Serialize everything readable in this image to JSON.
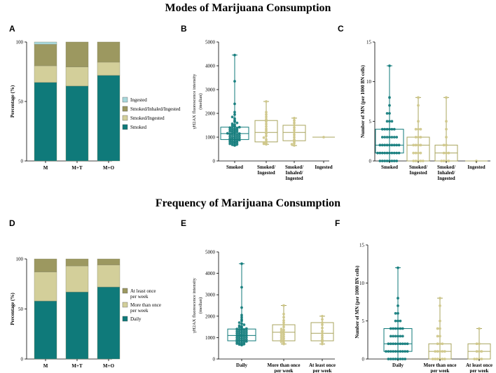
{
  "titles": {
    "top": "Modes of Marijuana Consumption",
    "bottom": "Frequency of Marijuana Consumption"
  },
  "colors": {
    "smoked": "#0f7a7a",
    "smoked_ingested": "#d3cf9a",
    "smoked_inhaled_ingested": "#9c9860",
    "ingested": "#a8d8dc",
    "daily": "#0f7a7a",
    "more_than_once": "#d3cf9a",
    "at_least_once": "#9c9860",
    "box_olive": "#a9a45e",
    "dot_olive": "#cfc88a"
  },
  "chart_data": [
    {
      "panel": "A",
      "type": "bar",
      "stacked": true,
      "ylabel": "Percentage (%)",
      "ylim": [
        0,
        100
      ],
      "yticks": [
        "0",
        "50",
        "100"
      ],
      "categories": [
        "M",
        "M+T",
        "M+O"
      ],
      "series": [
        {
          "name": "Smoked",
          "values": [
            66,
            63,
            72
          ],
          "color_key": "smoked"
        },
        {
          "name": "Smoked/Ingested",
          "values": [
            14,
            16,
            11
          ],
          "color_key": "smoked_ingested"
        },
        {
          "name": "Smoked/Inhaled/Ingested",
          "values": [
            18,
            21,
            17
          ],
          "color_key": "smoked_inhaled_ingested"
        },
        {
          "name": "Ingested",
          "values": [
            2,
            0,
            0
          ],
          "color_key": "ingested"
        }
      ],
      "legend": [
        "Ingested",
        "Smoked/Inhaled/Ingested",
        "Smoked/Ingested",
        "Smoked"
      ],
      "legend_position": "right"
    },
    {
      "panel": "B",
      "type": "scatter",
      "subtype": "box-with-points",
      "ylabel_line1": "γH2AX fluorescence intensity",
      "ylabel_line2": "(median)",
      "ylim": [
        0,
        5000
      ],
      "yticks": [
        "0",
        "1000",
        "2000",
        "3000",
        "4000",
        "5000"
      ],
      "categories": [
        [
          "Smoked"
        ],
        [
          "Smoked/",
          "Ingested"
        ],
        [
          "Smoked/",
          "Inhaled/",
          "Ingested"
        ],
        [
          "Ingested"
        ]
      ],
      "series": [
        {
          "name": "Smoked",
          "min": 650,
          "q1": 900,
          "median": 1150,
          "q3": 1420,
          "max": 4450,
          "points": [
            650,
            680,
            700,
            720,
            740,
            760,
            780,
            800,
            810,
            830,
            850,
            870,
            880,
            900,
            920,
            930,
            950,
            970,
            990,
            1000,
            1020,
            1040,
            1060,
            1080,
            1100,
            1110,
            1130,
            1150,
            1160,
            1180,
            1200,
            1220,
            1240,
            1260,
            1280,
            1300,
            1320,
            1340,
            1360,
            1380,
            1400,
            1420,
            1450,
            1480,
            1520,
            1560,
            1600,
            1650,
            1700,
            1780,
            1850,
            1950,
            2050,
            2400,
            3350,
            4450
          ]
        },
        {
          "name": "Smoked/Ingested",
          "min": 700,
          "q1": 800,
          "median": 1200,
          "q3": 1700,
          "max": 2500,
          "points": [
            700,
            720,
            750,
            780,
            820,
            900,
            980,
            1050,
            1150,
            1200,
            1280,
            1350,
            1450,
            1550,
            1650,
            1750,
            1850,
            1950,
            2050,
            2500
          ]
        },
        {
          "name": "Smoked/Inhaled/Ingested",
          "min": 650,
          "q1": 850,
          "median": 1200,
          "q3": 1500,
          "max": 1800,
          "points": [
            650,
            700,
            750,
            820,
            900,
            1000,
            1100,
            1200,
            1300,
            1400,
            1500,
            1600,
            1700,
            1800
          ]
        },
        {
          "name": "Ingested",
          "min": 1000,
          "q1": 1000,
          "median": 1000,
          "q3": 1000,
          "max": 1000,
          "points": [
            1000
          ]
        }
      ]
    },
    {
      "panel": "C",
      "type": "scatter",
      "subtype": "box-with-points",
      "ylabel": "Number of MN (per 1000 BN cells)",
      "ylim": [
        0,
        15
      ],
      "yticks": [
        "0",
        "5",
        "10",
        "15"
      ],
      "categories": [
        [
          "Smoked"
        ],
        [
          "Smoked/",
          "Ingested"
        ],
        [
          "Smoked/",
          "Inhaled/",
          "Ingested"
        ],
        [
          "Ingested"
        ]
      ],
      "series": [
        {
          "name": "Smoked",
          "min": 0,
          "q1": 1,
          "median": 2,
          "q3": 4,
          "max": 12,
          "points": [
            0,
            0,
            0,
            0,
            0,
            0,
            0,
            0,
            1,
            1,
            1,
            1,
            1,
            1,
            1,
            1,
            1,
            1,
            2,
            2,
            2,
            2,
            2,
            2,
            2,
            2,
            2,
            3,
            3,
            3,
            3,
            3,
            3,
            3,
            4,
            4,
            4,
            4,
            4,
            4,
            5,
            5,
            5,
            6,
            6,
            7,
            8,
            12
          ]
        },
        {
          "name": "Smoked/Ingested",
          "min": 0,
          "q1": 0,
          "median": 2,
          "q3": 3,
          "max": 8,
          "points": [
            0,
            0,
            0,
            0,
            0,
            1,
            1,
            1,
            1,
            2,
            2,
            2,
            2,
            3,
            3,
            3,
            4,
            4,
            4,
            5,
            7,
            8
          ]
        },
        {
          "name": "Smoked/Inhaled/Ingested",
          "min": 0,
          "q1": 0,
          "median": 1,
          "q3": 2,
          "max": 8,
          "points": [
            0,
            0,
            0,
            0,
            1,
            1,
            1,
            2,
            2,
            3,
            4,
            5,
            8
          ]
        },
        {
          "name": "Ingested",
          "min": 0,
          "q1": 0,
          "median": 0,
          "q3": 0,
          "max": 0,
          "points": [
            0
          ]
        }
      ]
    },
    {
      "panel": "D",
      "type": "bar",
      "stacked": true,
      "ylabel": "Percentage (%)",
      "ylim": [
        0,
        100
      ],
      "yticks": [
        "0",
        "50",
        "100"
      ],
      "categories": [
        "M",
        "M+T",
        "M+O"
      ],
      "series": [
        {
          "name": "Daily",
          "values": [
            58,
            67,
            72
          ],
          "color_key": "daily"
        },
        {
          "name": "More than once per week",
          "values": [
            29,
            26,
            22
          ],
          "color_key": "more_than_once"
        },
        {
          "name": "At least once per week",
          "values": [
            13,
            7,
            6
          ],
          "color_key": "at_least_once"
        }
      ],
      "legend": [
        [
          "At least once",
          "per week"
        ],
        [
          "More than once",
          "per week"
        ],
        [
          "Daily"
        ]
      ],
      "legend_position": "right"
    },
    {
      "panel": "E",
      "type": "scatter",
      "subtype": "box-with-points",
      "ylabel_line1": "γH2AX fluorescence intensity",
      "ylabel_line2": "(median)",
      "ylim": [
        0,
        5000
      ],
      "yticks": [
        "0",
        "1000",
        "2000",
        "3000",
        "4000",
        "5000"
      ],
      "categories": [
        [
          "Daily"
        ],
        [
          "More than once",
          "per week"
        ],
        [
          "At least once",
          "per week"
        ]
      ],
      "series": [
        {
          "name": "Daily",
          "min": 650,
          "q1": 850,
          "median": 1100,
          "q3": 1400,
          "max": 4450,
          "points": [
            650,
            680,
            700,
            720,
            740,
            760,
            780,
            800,
            820,
            840,
            860,
            880,
            900,
            920,
            940,
            960,
            980,
            1000,
            1020,
            1040,
            1060,
            1080,
            1100,
            1120,
            1140,
            1160,
            1180,
            1200,
            1220,
            1240,
            1260,
            1280,
            1300,
            1320,
            1340,
            1360,
            1380,
            1400,
            1420,
            1450,
            1480,
            1520,
            1560,
            1600,
            1650,
            1700,
            1780,
            1850,
            1950,
            2050,
            2400,
            3350,
            4450
          ]
        },
        {
          "name": "More than once per week",
          "min": 700,
          "q1": 850,
          "median": 1250,
          "q3": 1600,
          "max": 2500,
          "points": [
            700,
            750,
            800,
            850,
            900,
            950,
            1000,
            1050,
            1100,
            1150,
            1200,
            1250,
            1300,
            1350,
            1400,
            1500,
            1600,
            1700,
            1800,
            1950,
            2100,
            2500
          ]
        },
        {
          "name": "At least once per week",
          "min": 700,
          "q1": 850,
          "median": 1200,
          "q3": 1700,
          "max": 2000,
          "points": [
            700,
            800,
            900,
            1000,
            1100,
            1200,
            1300,
            1450,
            1600,
            1700,
            1850,
            2000
          ]
        }
      ]
    },
    {
      "panel": "F",
      "type": "scatter",
      "subtype": "box-with-points",
      "ylabel": "Number of MN (per 1000 BN cells)",
      "ylim": [
        0,
        15
      ],
      "yticks": [
        "0",
        "5",
        "10",
        "15"
      ],
      "categories": [
        [
          "Daily"
        ],
        [
          "More than once",
          "per week"
        ],
        [
          "At least once",
          "per week"
        ]
      ],
      "series": [
        {
          "name": "Daily",
          "min": 0,
          "q1": 1,
          "median": 2,
          "q3": 4,
          "max": 12,
          "points": [
            0,
            0,
            0,
            0,
            0,
            0,
            0,
            0,
            1,
            1,
            1,
            1,
            1,
            1,
            1,
            1,
            1,
            1,
            2,
            2,
            2,
            2,
            2,
            2,
            2,
            2,
            2,
            3,
            3,
            3,
            3,
            3,
            3,
            4,
            4,
            4,
            4,
            4,
            4,
            5,
            5,
            5,
            6,
            6,
            7,
            8,
            12
          ]
        },
        {
          "name": "More than once per week",
          "min": 0,
          "q1": 0,
          "median": 1,
          "q3": 2,
          "max": 8,
          "points": [
            0,
            0,
            0,
            0,
            0,
            0,
            1,
            1,
            1,
            1,
            1,
            2,
            2,
            2,
            3,
            3,
            4,
            4,
            5,
            7,
            8
          ]
        },
        {
          "name": "At least once per week",
          "min": 0,
          "q1": 0,
          "median": 1,
          "q3": 2,
          "max": 4,
          "points": [
            0,
            0,
            0,
            0,
            1,
            1,
            1,
            2,
            2,
            4
          ]
        }
      ]
    }
  ]
}
